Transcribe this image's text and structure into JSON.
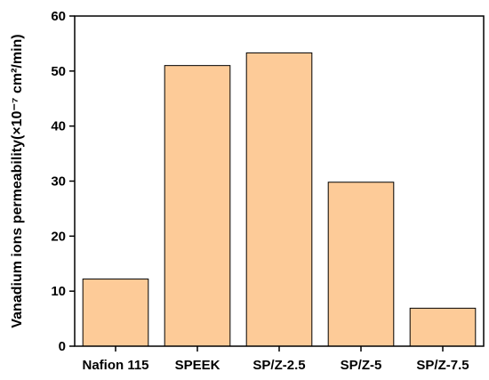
{
  "chart_data": {
    "type": "bar",
    "title": "",
    "xlabel": "",
    "ylabel": "Vanadium ions permeability(×10⁻⁷ cm²/min)",
    "categories": [
      "Nafion 115",
      "SPEEK",
      "SP/Z-2.5",
      "SP/Z-5",
      "SP/Z-7.5"
    ],
    "values": [
      12.2,
      51.0,
      53.3,
      29.8,
      6.9
    ],
    "ylim": [
      0,
      60
    ],
    "yticks": [
      0,
      10,
      20,
      30,
      40,
      50,
      60
    ],
    "ytick_labels": [
      "0",
      "10",
      "20",
      "30",
      "40",
      "50",
      "60"
    ],
    "grid": false,
    "colors": {
      "bar_fill": "#fdcb98",
      "bar_stroke": "#000000",
      "axis": "#000000"
    }
  }
}
